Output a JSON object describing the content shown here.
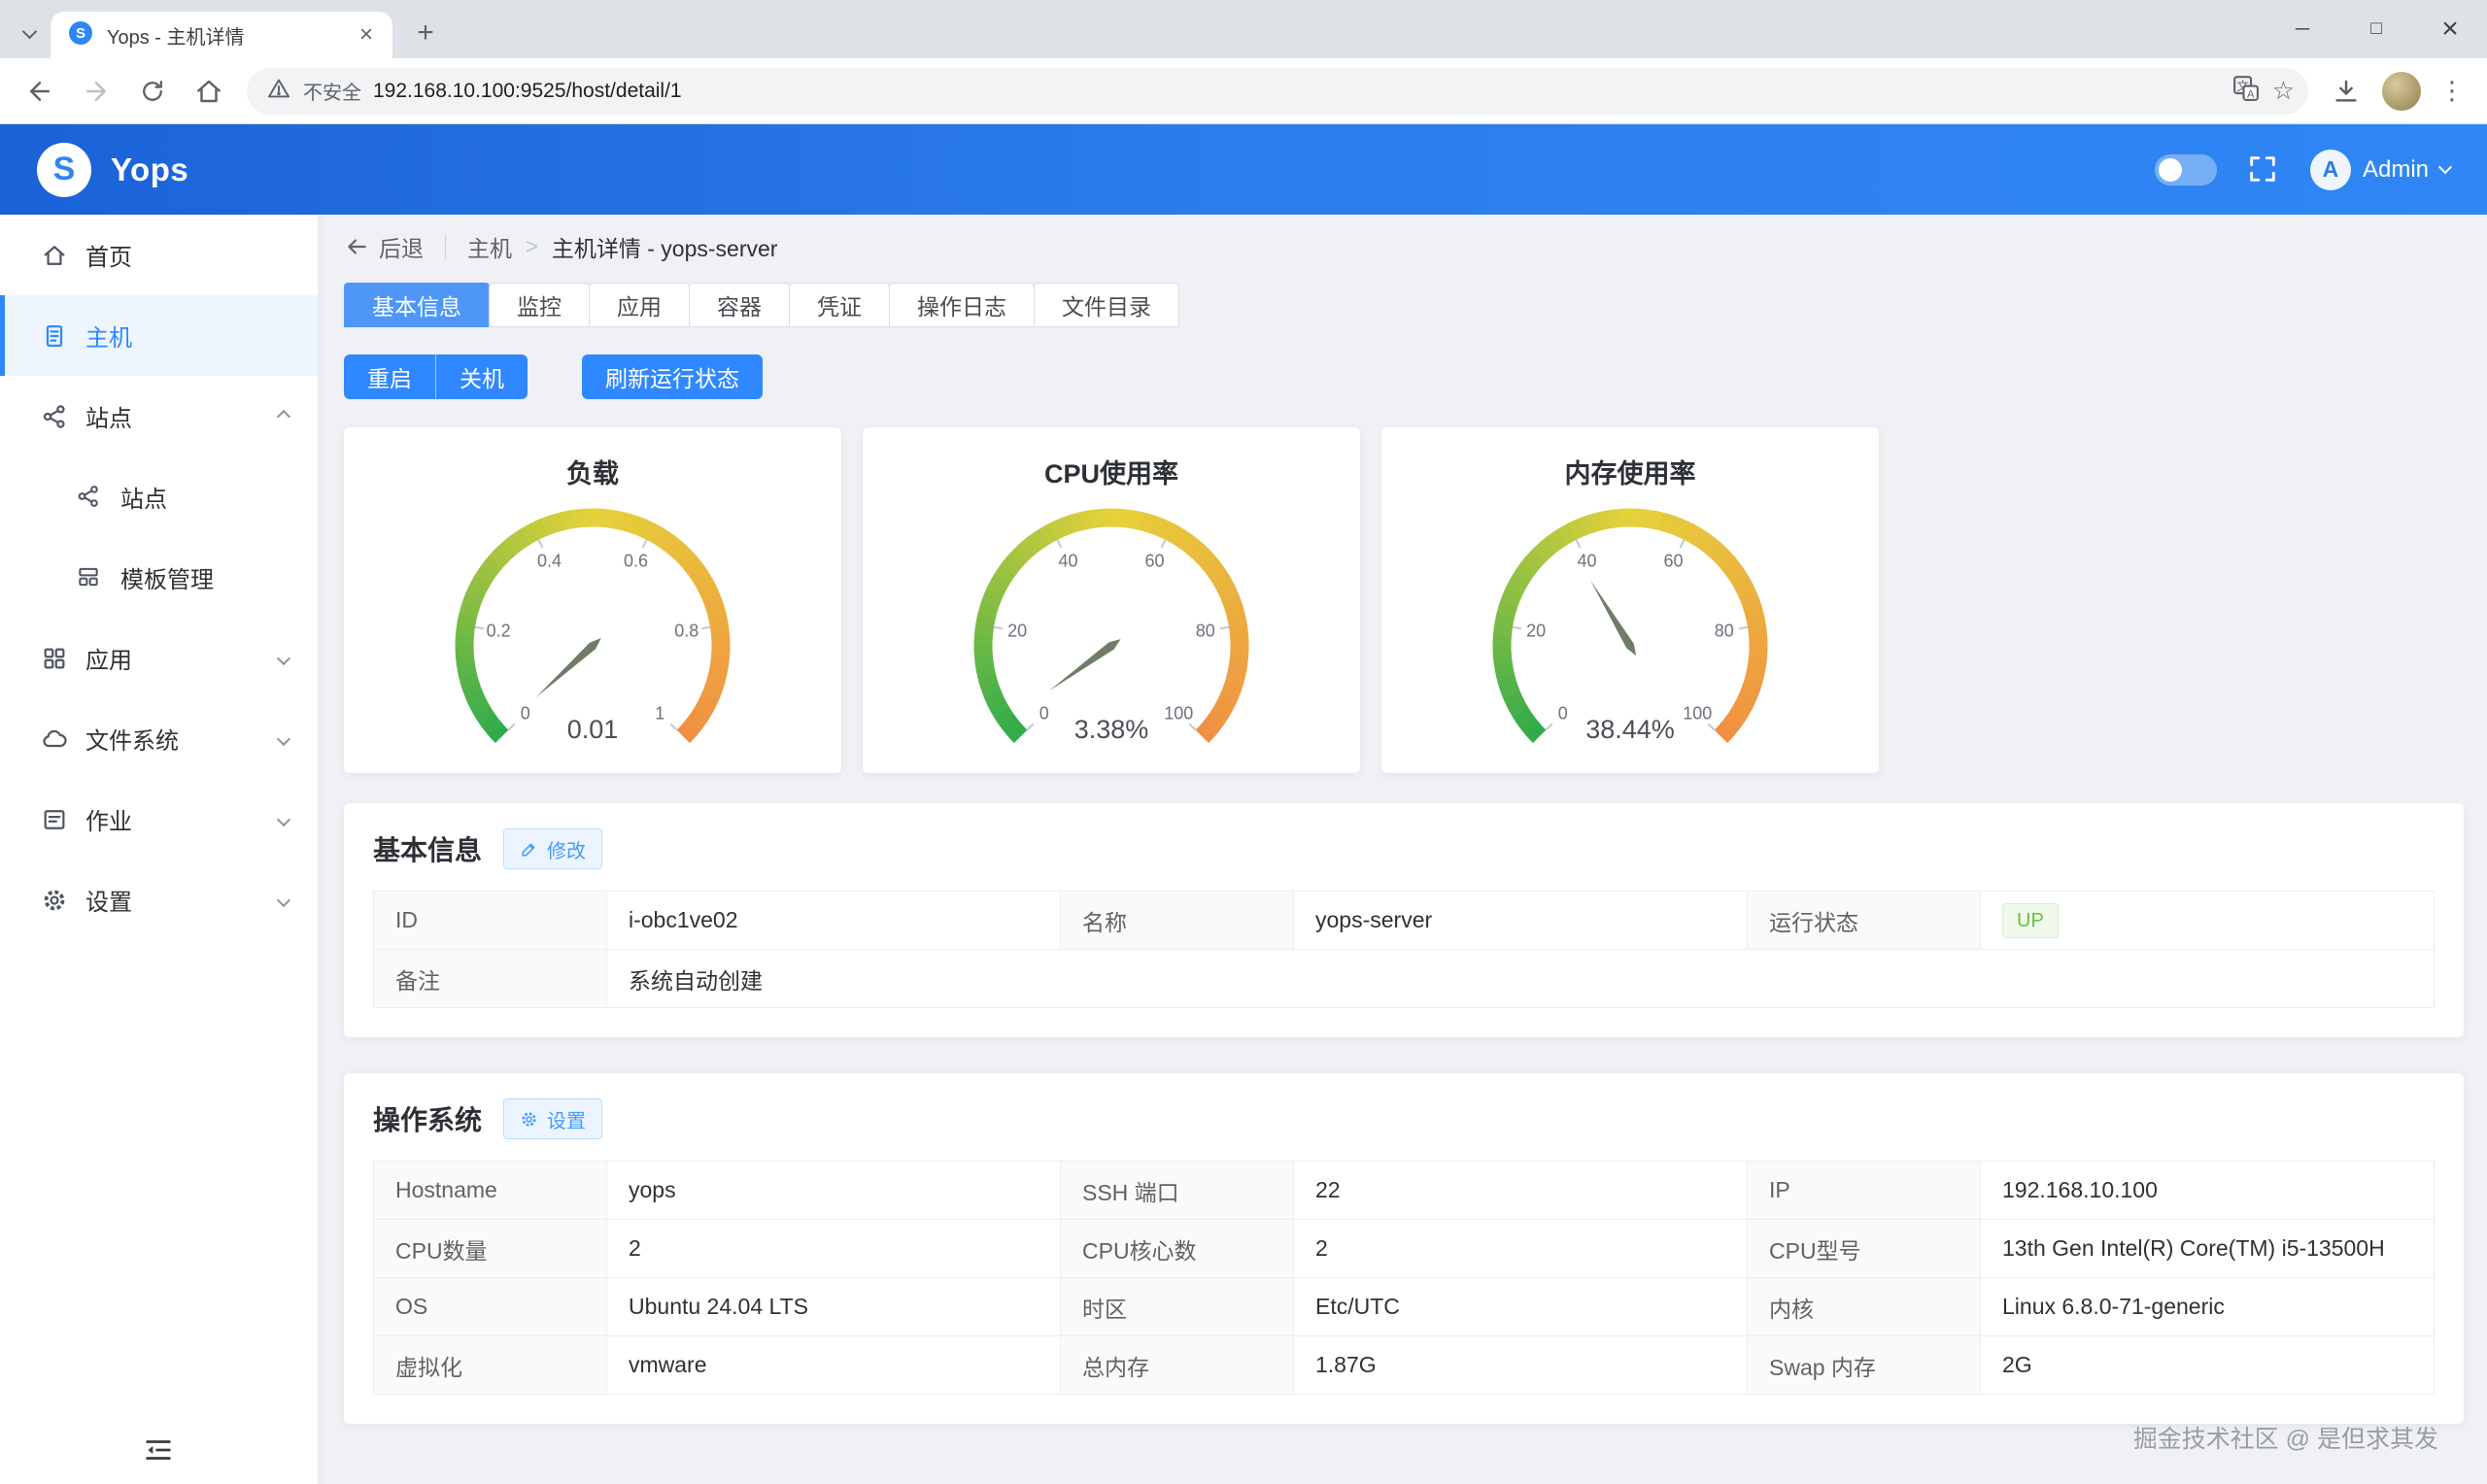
{
  "browser": {
    "tab_title": "Yops - 主机详情",
    "url": "192.168.10.100:9525/host/detail/1",
    "security_label": "不安全"
  },
  "icons": {
    "minimize": "─",
    "maximize": "□",
    "close": "×",
    "new_tab": "+",
    "tab_close": "×",
    "kebab": "⋮",
    "star": "☆"
  },
  "app_header": {
    "brand": "Yops",
    "logo_letter": "S",
    "user_initial": "A",
    "user_name": "Admin"
  },
  "sidebar": {
    "items": [
      {
        "icon": "home-icon",
        "label": "首页"
      },
      {
        "icon": "host-icon",
        "label": "主机",
        "active": true
      },
      {
        "icon": "site-icon",
        "label": "站点",
        "expanded": true
      },
      {
        "icon": "site-icon",
        "label": "站点",
        "sub": true
      },
      {
        "icon": "template-icon",
        "label": "模板管理",
        "sub": true
      },
      {
        "icon": "apps-icon",
        "label": "应用",
        "expanded": false
      },
      {
        "icon": "filesystem-icon",
        "label": "文件系统",
        "expanded": false
      },
      {
        "icon": "jobs-icon",
        "label": "作业",
        "expanded": false
      },
      {
        "icon": "settings-icon",
        "label": "设置",
        "expanded": false
      }
    ]
  },
  "breadcrumb": {
    "back_label": "后退",
    "section": "主机",
    "separator": ">",
    "current": "主机详情 - yops-server"
  },
  "tabs": {
    "items": [
      {
        "label": "基本信息",
        "active": true
      },
      {
        "label": "监控"
      },
      {
        "label": "应用"
      },
      {
        "label": "容器"
      },
      {
        "label": "凭证"
      },
      {
        "label": "操作日志"
      },
      {
        "label": "文件目录"
      }
    ]
  },
  "actions": {
    "restart": "重启",
    "shutdown": "关机",
    "refresh_status": "刷新运行状态"
  },
  "chart_data": [
    {
      "type": "gauge",
      "title": "负载",
      "value": 0.01,
      "display_value": "0.01",
      "min": 0,
      "max": 1,
      "ticks": [
        "0",
        "0.2",
        "0.4",
        "0.6",
        "0.8",
        "1"
      ],
      "start_angle": 225,
      "end_angle": -45
    },
    {
      "type": "gauge",
      "title": "CPU使用率",
      "value": 3.38,
      "display_value": "3.38%",
      "min": 0,
      "max": 100,
      "ticks": [
        "0",
        "20",
        "40",
        "60",
        "80",
        "100"
      ],
      "start_angle": 225,
      "end_angle": -45
    },
    {
      "type": "gauge",
      "title": "内存使用率",
      "value": 38.44,
      "display_value": "38.44%",
      "min": 0,
      "max": 100,
      "ticks": [
        "0",
        "20",
        "40",
        "60",
        "80",
        "100"
      ],
      "start_angle": 225,
      "end_angle": -45
    }
  ],
  "basic_info": {
    "title": "基本信息",
    "edit_button": "修改",
    "fields": [
      {
        "label": "ID",
        "value": "i-obc1ve02"
      },
      {
        "label": "名称",
        "value": "yops-server"
      },
      {
        "label": "运行状态",
        "value": "UP"
      },
      {
        "label": "备注",
        "value": "系统自动创建"
      }
    ]
  },
  "os_info": {
    "title": "操作系统",
    "settings_button": "设置",
    "fields": [
      {
        "label": "Hostname",
        "value": "yops"
      },
      {
        "label": "SSH 端口",
        "value": "22"
      },
      {
        "label": "IP",
        "value": "192.168.10.100"
      },
      {
        "label": "CPU数量",
        "value": "2"
      },
      {
        "label": "CPU核心数",
        "value": "2"
      },
      {
        "label": "CPU型号",
        "value": "13th Gen Intel(R) Core(TM) i5-13500H"
      },
      {
        "label": "OS",
        "value": "Ubuntu 24.04 LTS"
      },
      {
        "label": "时区",
        "value": "Etc/UTC"
      },
      {
        "label": "内核",
        "value": "Linux 6.8.0-71-generic"
      },
      {
        "label": "虚拟化",
        "value": "vmware"
      },
      {
        "label": "总内存",
        "value": "1.87G"
      },
      {
        "label": "Swap 内存",
        "value": "2G"
      }
    ]
  },
  "watermark": "掘金技术社区 @ 是但求其发",
  "colors": {
    "primary": "#2f88ff",
    "tab_active": "#4e97f6",
    "header_gradient_start": "#1b62d8",
    "header_gradient_end": "#2f86f5",
    "status_up_text": "#67c23a",
    "status_up_bg": "#f0f9eb",
    "gauge_green": "#2eab4b",
    "gauge_yellow": "#e6d23a",
    "gauge_orange": "#f18f43",
    "gauge_needle": "#6f7d68"
  }
}
